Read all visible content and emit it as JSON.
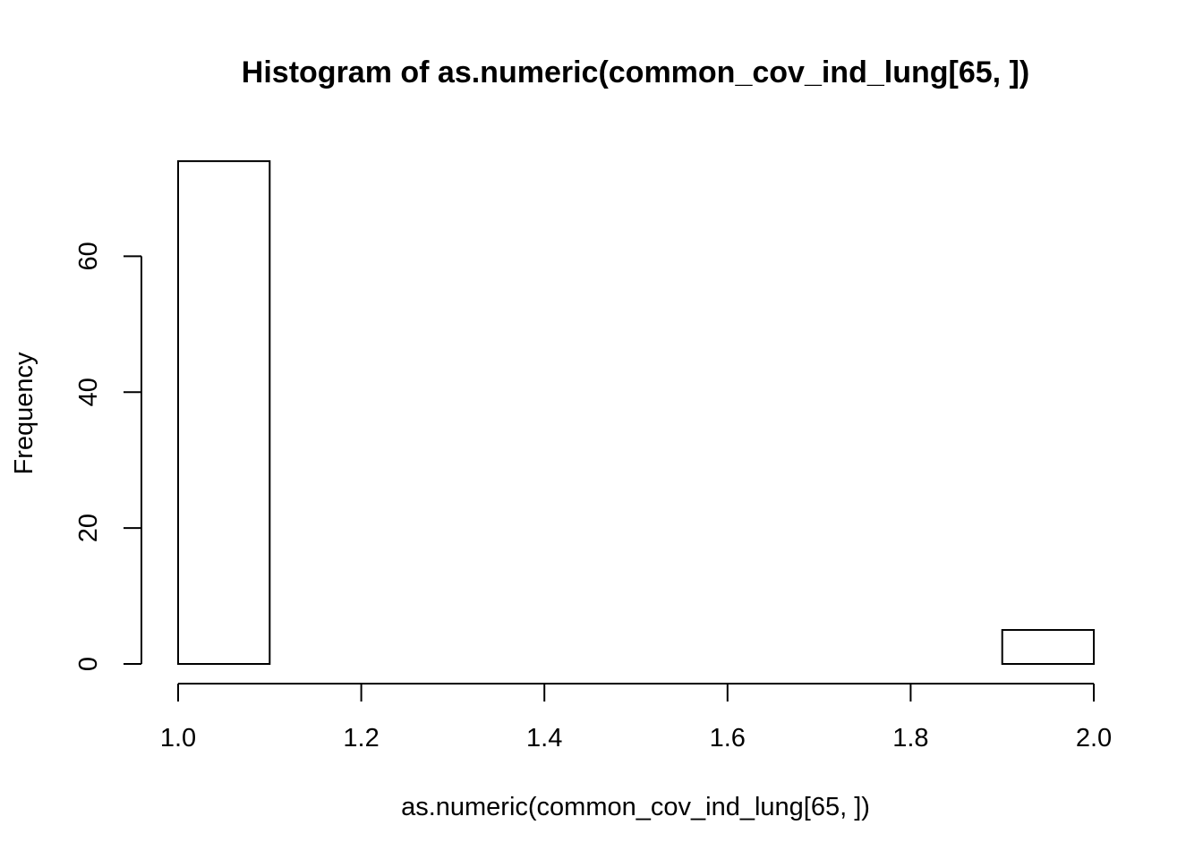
{
  "chart_data": {
    "type": "bar",
    "title": "Histogram of as.numeric(common_cov_ind_lung[65, ])",
    "xlabel": "as.numeric(common_cov_ind_lung[65, ])",
    "ylabel": "Frequency",
    "bins": [
      {
        "start": 1.0,
        "end": 1.1,
        "count": 74
      },
      {
        "start": 1.1,
        "end": 1.2,
        "count": 0
      },
      {
        "start": 1.2,
        "end": 1.3,
        "count": 0
      },
      {
        "start": 1.3,
        "end": 1.4,
        "count": 0
      },
      {
        "start": 1.4,
        "end": 1.5,
        "count": 0
      },
      {
        "start": 1.5,
        "end": 1.6,
        "count": 0
      },
      {
        "start": 1.6,
        "end": 1.7,
        "count": 0
      },
      {
        "start": 1.7,
        "end": 1.8,
        "count": 0
      },
      {
        "start": 1.8,
        "end": 1.9,
        "count": 0
      },
      {
        "start": 1.9,
        "end": 2.0,
        "count": 5
      }
    ],
    "xlim": [
      1.0,
      2.0
    ],
    "ylim": [
      0,
      74
    ],
    "x_ticks": [
      "1.0",
      "1.2",
      "1.4",
      "1.6",
      "1.8",
      "2.0"
    ],
    "y_ticks": [
      "0",
      "20",
      "40",
      "60"
    ],
    "grid": false,
    "legend": "none",
    "bar_fill": "#ffffff",
    "bar_stroke": "#000000"
  }
}
